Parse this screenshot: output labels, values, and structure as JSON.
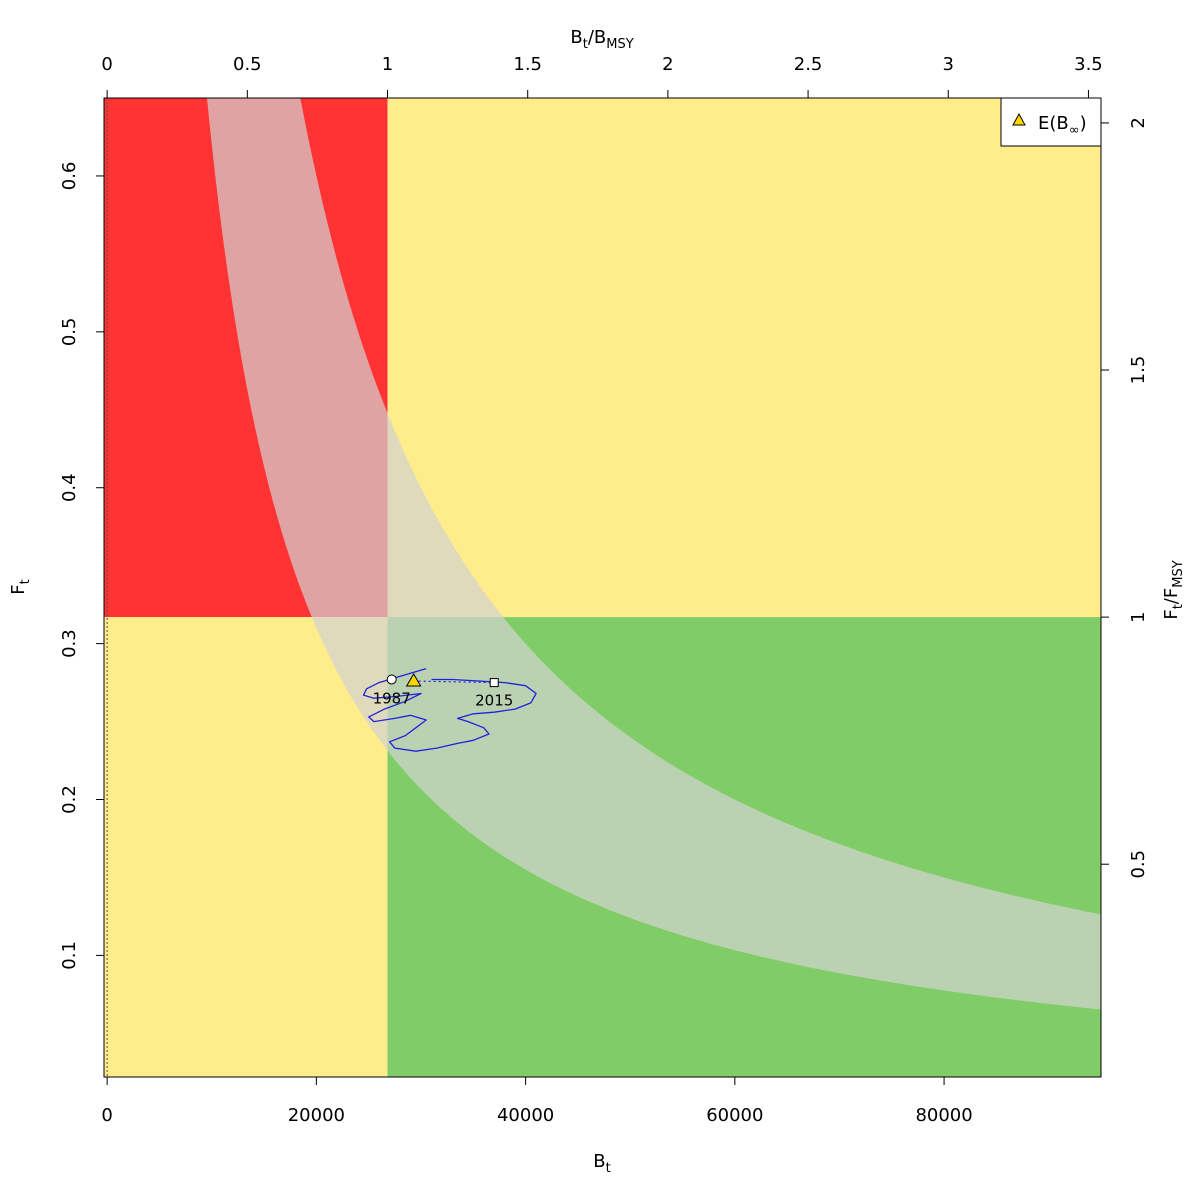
{
  "chart_data": {
    "type": "scatter",
    "title": "",
    "xlabel": "B",
    "xlabel_sub": "t",
    "ylabel": "F",
    "ylabel_sub": "t",
    "top_axis_label": {
      "main": "B",
      "sub1": "t",
      "slash": "/B",
      "sub2": "MSY"
    },
    "right_axis_label": {
      "main": "F",
      "sub1": "t",
      "slash": "/F",
      "sub2": "MSY"
    },
    "xlim": [
      -300,
      95000
    ],
    "ylim": [
      0.022,
      0.65
    ],
    "x_ticks": [
      "0",
      "20000",
      "40000",
      "60000",
      "80000"
    ],
    "x_tick_values": [
      0,
      20000,
      40000,
      60000,
      80000
    ],
    "y_ticks": [
      "0.1",
      "0.2",
      "0.3",
      "0.4",
      "0.5",
      "0.6"
    ],
    "y_tick_values": [
      0.1,
      0.2,
      0.3,
      0.4,
      0.5,
      0.6
    ],
    "top_ticks": [
      "0",
      "0.5",
      "1",
      "1.5",
      "2",
      "2.5",
      "3",
      "3.5"
    ],
    "top_tick_values": [
      0,
      0.5,
      1,
      1.5,
      2,
      2.5,
      3,
      3.5
    ],
    "right_ticks": [
      "0.5",
      "1",
      "1.5",
      "2"
    ],
    "right_tick_values": [
      0.5,
      1,
      1.5,
      2
    ],
    "Bmsy": 26800,
    "Fmsy": 0.317,
    "msy_band": {
      "upper_k": 12000,
      "lower_k": 6200,
      "x_from": 9000,
      "x_to": 95000
    },
    "colors": {
      "red_zone": "#ff3333",
      "yellow_zone": "#ffec8b",
      "green_zone": "#80cc66",
      "band": "#d3d3d3",
      "trajectory": "#2222dd",
      "triangle": "#ffd700",
      "band_opacity": 0.7
    },
    "grid": false,
    "legend": {
      "position": "top-right",
      "entries": [
        {
          "label_main": "E(B",
          "label_sub": "∞",
          "label_end": ")",
          "marker": "triangle"
        }
      ]
    },
    "trajectory": [
      [
        30500,
        0.284
      ],
      [
        29000,
        0.281
      ],
      [
        27500,
        0.278
      ],
      [
        26000,
        0.275
      ],
      [
        24800,
        0.271
      ],
      [
        24500,
        0.267
      ],
      [
        25500,
        0.265
      ],
      [
        27500,
        0.266
      ],
      [
        30000,
        0.268
      ],
      [
        28500,
        0.263
      ],
      [
        26500,
        0.258
      ],
      [
        25000,
        0.253
      ],
      [
        25500,
        0.25
      ],
      [
        27500,
        0.252
      ],
      [
        29000,
        0.254
      ],
      [
        30500,
        0.251
      ],
      [
        29500,
        0.246
      ],
      [
        28500,
        0.241
      ],
      [
        27000,
        0.237
      ],
      [
        27500,
        0.233
      ],
      [
        29500,
        0.231
      ],
      [
        31500,
        0.233
      ],
      [
        33500,
        0.236
      ],
      [
        35000,
        0.238
      ],
      [
        36500,
        0.242
      ],
      [
        36000,
        0.246
      ],
      [
        34500,
        0.25
      ],
      [
        33500,
        0.252
      ],
      [
        35000,
        0.255
      ],
      [
        37000,
        0.256
      ],
      [
        39000,
        0.258
      ],
      [
        40500,
        0.262
      ],
      [
        41000,
        0.268
      ],
      [
        40000,
        0.273
      ],
      [
        38000,
        0.275
      ],
      [
        35500,
        0.276
      ],
      [
        33000,
        0.277
      ],
      [
        31000,
        0.277
      ]
    ],
    "start": {
      "label": "1987",
      "x": 27200,
      "y": 0.277
    },
    "end": {
      "label": "2015",
      "x": 37000,
      "y": 0.275
    },
    "expected": {
      "x": 29300,
      "y": 0.276
    },
    "dotted_vertical_x": 0
  }
}
